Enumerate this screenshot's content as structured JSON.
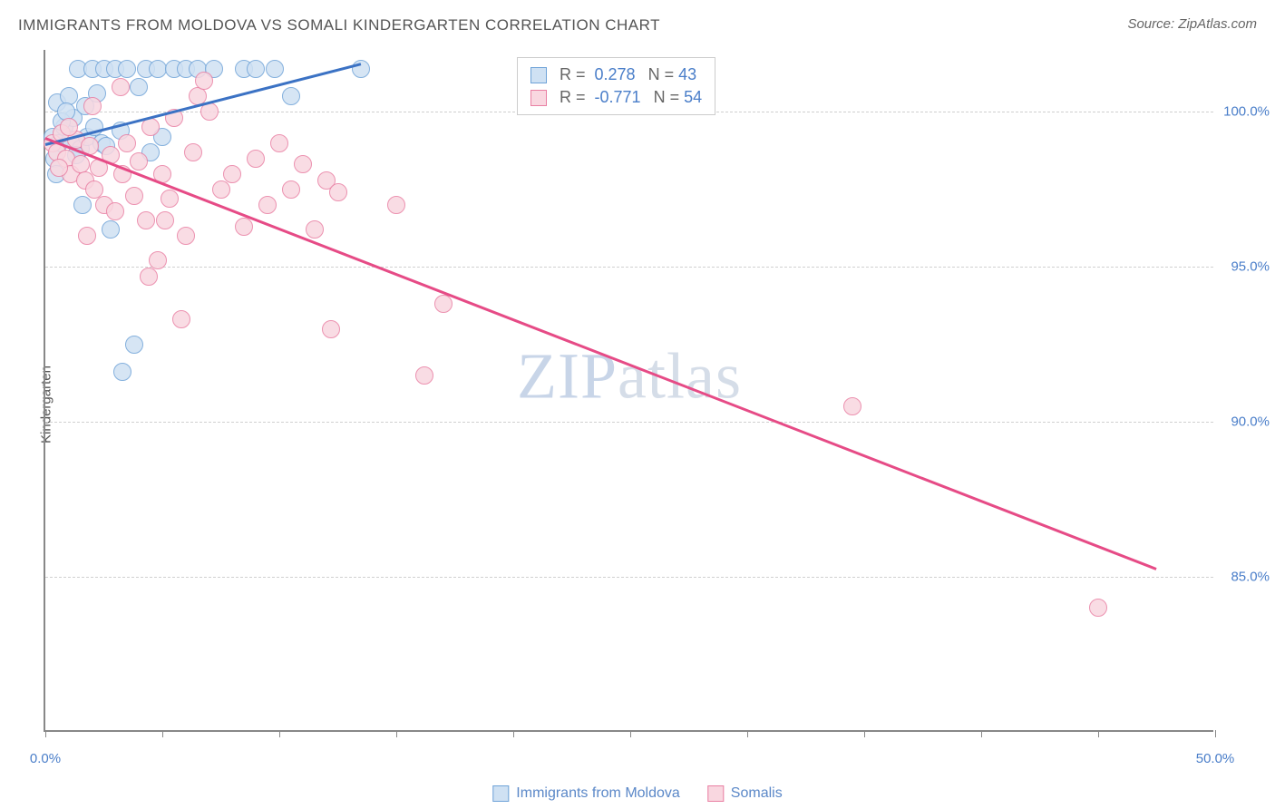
{
  "title": "IMMIGRANTS FROM MOLDOVA VS SOMALI KINDERGARTEN CORRELATION CHART",
  "source": "Source: ZipAtlas.com",
  "y_label": "Kindergarten",
  "watermark_bold": "ZIP",
  "watermark_thin": "atlas",
  "chart": {
    "type": "scatter",
    "xlim": [
      0,
      50
    ],
    "ylim": [
      80,
      102
    ],
    "x_ticks": [
      0,
      5,
      10,
      15,
      20,
      25,
      30,
      35,
      40,
      45,
      50
    ],
    "x_tick_labels": {
      "0": "0.0%",
      "50": "50.0%"
    },
    "y_ticks": [
      85,
      90,
      95,
      100
    ],
    "y_tick_labels": {
      "85": "85.0%",
      "90": "90.0%",
      "95": "95.0%",
      "100": "100.0%"
    },
    "background_color": "#ffffff",
    "grid_color": "#d0d0d0",
    "axis_color": "#888888",
    "marker_radius": 10,
    "marker_stroke_width": 1.5,
    "series": [
      {
        "name": "Immigrants from Moldova",
        "fill": "#cfe1f3",
        "stroke": "#6fa3d8",
        "line_color": "#3b72c4",
        "R": "0.278",
        "N": "43",
        "trend": {
          "x1": 0,
          "y1": 99.0,
          "x2": 13.5,
          "y2": 101.6
        },
        "points": [
          [
            0.3,
            99.2
          ],
          [
            0.5,
            100.3
          ],
          [
            0.6,
            99.0
          ],
          [
            0.8,
            99.5
          ],
          [
            1.0,
            100.5
          ],
          [
            1.1,
            99.1
          ],
          [
            1.2,
            99.8
          ],
          [
            1.4,
            101.4
          ],
          [
            1.5,
            98.8
          ],
          [
            1.8,
            99.2
          ],
          [
            2.0,
            101.4
          ],
          [
            2.2,
            100.6
          ],
          [
            2.4,
            99.0
          ],
          [
            2.5,
            101.4
          ],
          [
            2.8,
            96.2
          ],
          [
            3.0,
            101.4
          ],
          [
            3.2,
            99.4
          ],
          [
            3.5,
            101.4
          ],
          [
            3.8,
            92.5
          ],
          [
            4.0,
            100.8
          ],
          [
            4.3,
            101.4
          ],
          [
            4.5,
            98.7
          ],
          [
            4.8,
            101.4
          ],
          [
            3.3,
            91.6
          ],
          [
            5.0,
            99.2
          ],
          [
            5.5,
            101.4
          ],
          [
            6.0,
            101.4
          ],
          [
            6.5,
            101.4
          ],
          [
            7.2,
            101.4
          ],
          [
            8.5,
            101.4
          ],
          [
            9.0,
            101.4
          ],
          [
            9.8,
            101.4
          ],
          [
            10.5,
            100.5
          ],
          [
            13.5,
            101.4
          ],
          [
            0.4,
            98.5
          ],
          [
            0.7,
            99.7
          ],
          [
            0.9,
            100.0
          ],
          [
            1.3,
            98.6
          ],
          [
            1.7,
            100.2
          ],
          [
            2.1,
            99.5
          ],
          [
            2.6,
            98.9
          ],
          [
            1.6,
            97.0
          ],
          [
            0.45,
            98.0
          ]
        ]
      },
      {
        "name": "Somalis",
        "fill": "#f9d7e0",
        "stroke": "#e97fa3",
        "line_color": "#e64b86",
        "R": "-0.771",
        "N": "54",
        "trend": {
          "x1": 0,
          "y1": 99.2,
          "x2": 47.5,
          "y2": 85.3
        },
        "points": [
          [
            0.3,
            99.0
          ],
          [
            0.5,
            98.7
          ],
          [
            0.7,
            99.3
          ],
          [
            0.9,
            98.5
          ],
          [
            1.1,
            98.0
          ],
          [
            1.3,
            99.1
          ],
          [
            1.5,
            98.3
          ],
          [
            1.7,
            97.8
          ],
          [
            1.9,
            98.9
          ],
          [
            2.1,
            97.5
          ],
          [
            2.3,
            98.2
          ],
          [
            2.5,
            97.0
          ],
          [
            2.8,
            98.6
          ],
          [
            3.0,
            96.8
          ],
          [
            3.3,
            98.0
          ],
          [
            3.5,
            99.0
          ],
          [
            3.8,
            97.3
          ],
          [
            4.0,
            98.4
          ],
          [
            4.3,
            96.5
          ],
          [
            4.5,
            99.5
          ],
          [
            4.8,
            95.2
          ],
          [
            5.0,
            98.0
          ],
          [
            5.3,
            97.2
          ],
          [
            5.5,
            99.8
          ],
          [
            5.8,
            93.3
          ],
          [
            6.0,
            96.0
          ],
          [
            6.3,
            98.7
          ],
          [
            6.5,
            100.5
          ],
          [
            7.0,
            100.0
          ],
          [
            7.5,
            97.5
          ],
          [
            8.0,
            98.0
          ],
          [
            8.5,
            96.3
          ],
          [
            9.0,
            98.5
          ],
          [
            9.5,
            97.0
          ],
          [
            10.0,
            99.0
          ],
          [
            4.4,
            94.7
          ],
          [
            10.5,
            97.5
          ],
          [
            11.0,
            98.3
          ],
          [
            11.5,
            96.2
          ],
          [
            12.0,
            97.8
          ],
          [
            12.2,
            93.0
          ],
          [
            12.5,
            97.4
          ],
          [
            15.0,
            97.0
          ],
          [
            16.2,
            91.5
          ],
          [
            17.0,
            93.8
          ],
          [
            34.5,
            90.5
          ],
          [
            45.0,
            84.0
          ],
          [
            3.2,
            100.8
          ],
          [
            2.0,
            100.2
          ],
          [
            1.0,
            99.5
          ],
          [
            0.6,
            98.2
          ],
          [
            1.8,
            96.0
          ],
          [
            5.1,
            96.5
          ],
          [
            6.8,
            101.0
          ]
        ]
      }
    ]
  },
  "legend_stats": {
    "rows": [
      {
        "label_r": "R =",
        "label_n": "N ="
      },
      {
        "label_r": "R =",
        "label_n": "N ="
      }
    ]
  }
}
